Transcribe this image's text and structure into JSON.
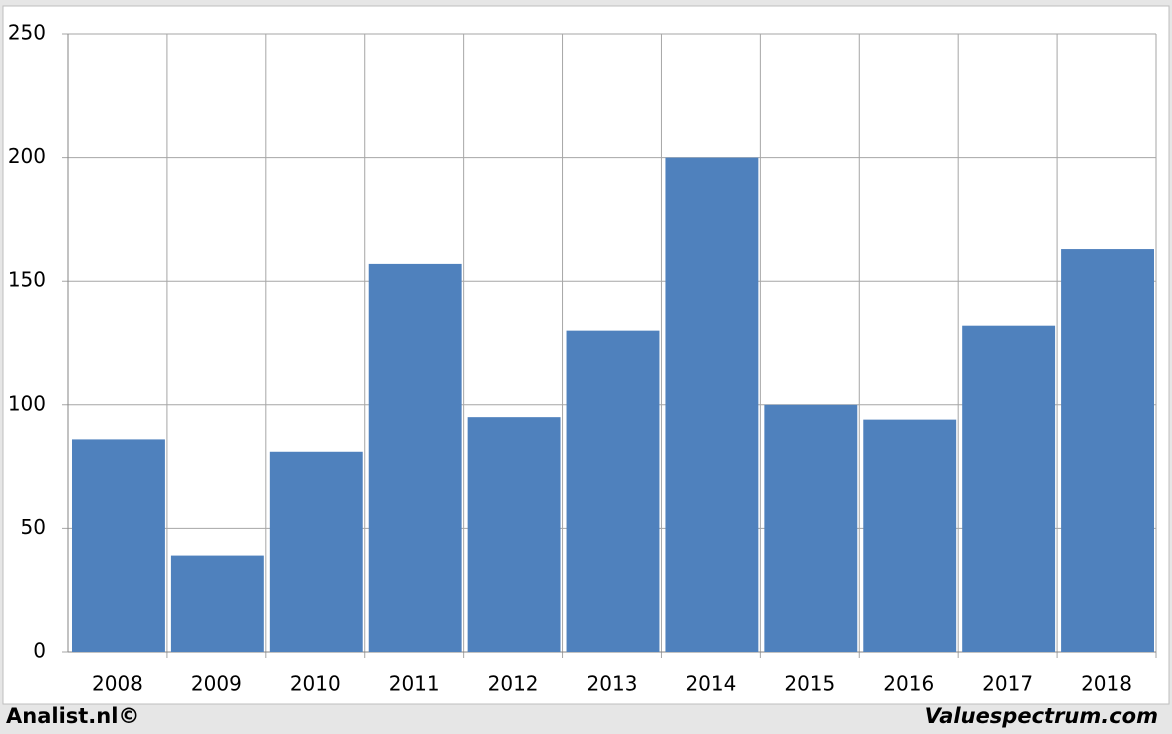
{
  "chart_data": {
    "type": "bar",
    "categories": [
      "2008",
      "2009",
      "2010",
      "2011",
      "2012",
      "2013",
      "2014",
      "2015",
      "2016",
      "2017",
      "2018"
    ],
    "values": [
      86,
      39,
      81,
      157,
      95,
      130,
      200,
      100,
      94,
      132,
      163
    ],
    "color": "#4f81bd",
    "ylim": [
      0,
      250
    ],
    "yticks": [
      0,
      50,
      100,
      150,
      200,
      250
    ],
    "grid": true,
    "footer_left": "Analist.nl©",
    "footer_right": "Valuespectrum.com"
  }
}
